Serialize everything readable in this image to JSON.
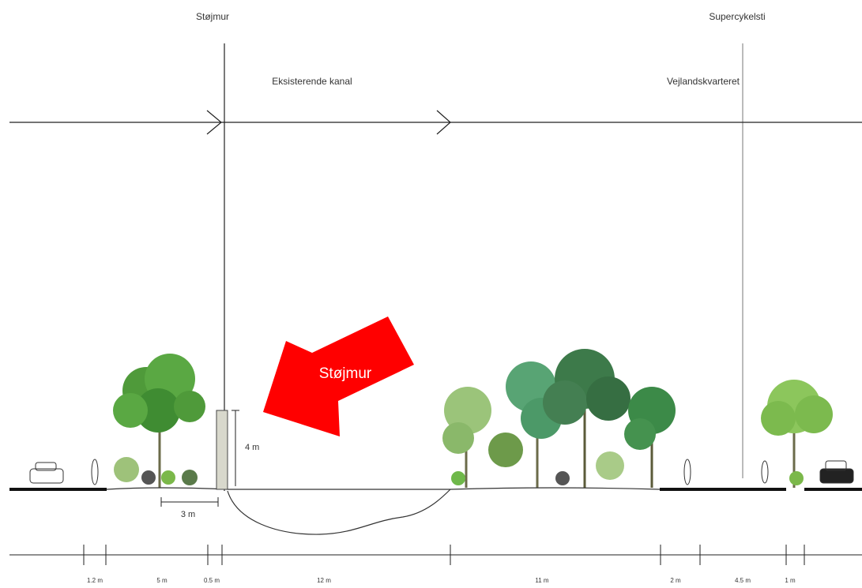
{
  "labels": {
    "wall_top": "Støjmur",
    "cycle_path": "Supercykelsti",
    "canal": "Eksisterende kanal",
    "district": "Vejlandskvarteret",
    "arrow": "Støjmur",
    "wall_height": "4 m",
    "wall_offset": "3 m"
  },
  "dimensions": [
    "1.2 m",
    "5 m",
    "0.5 m",
    "12 m",
    "11 m",
    "2 m",
    "4.5 m",
    "1 m"
  ]
}
